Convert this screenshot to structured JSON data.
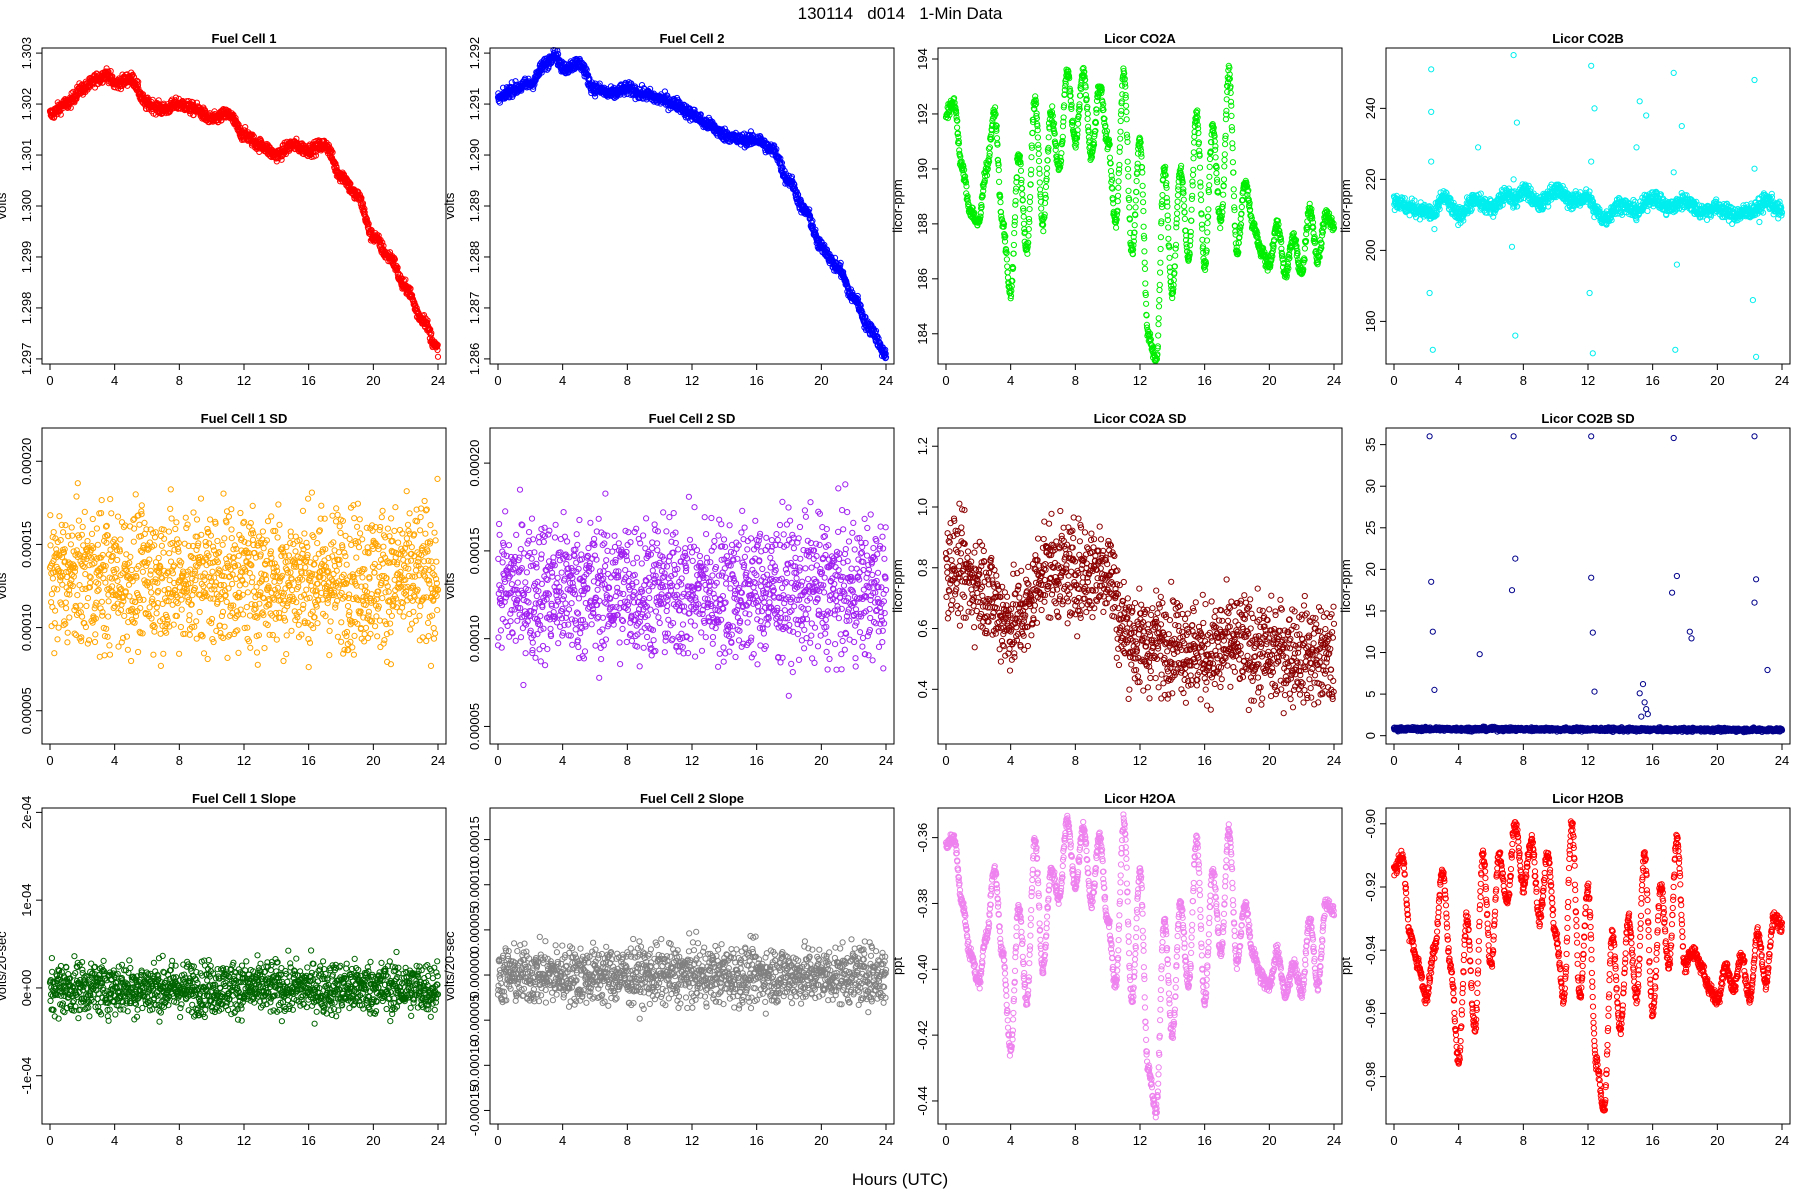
{
  "page": {
    "title": "130114   d014   1-Min Data",
    "x_caption": "Hours (UTC)"
  },
  "chart_data": [
    {
      "type": "scatter",
      "title": "Fuel Cell 1",
      "ylabel": "volts",
      "color": "#ff0000",
      "xlim": [
        0,
        24
      ],
      "ylim": [
        1.2969,
        1.3031
      ],
      "xticks": [
        0,
        4,
        8,
        12,
        16,
        20,
        24
      ],
      "xtick_labels": [
        "0",
        "4",
        "8",
        "12",
        "16",
        "20",
        "24"
      ],
      "yticks": [
        1.297,
        1.298,
        1.299,
        1.3,
        1.301,
        1.302,
        1.303
      ],
      "ytick_labels": [
        "1.297",
        "1.298",
        "1.299",
        "1.300",
        "1.301",
        "1.302",
        "1.303"
      ],
      "x": [
        0,
        1,
        2,
        3,
        3.5,
        4,
        5,
        6,
        7,
        8,
        9,
        10,
        11,
        12,
        13,
        14,
        15,
        16,
        17,
        18,
        19,
        20,
        21,
        22,
        23,
        24
      ],
      "y": [
        1.3018,
        1.302,
        1.3023,
        1.3025,
        1.3026,
        1.3024,
        1.3025,
        1.302,
        1.3019,
        1.302,
        1.3019,
        1.3017,
        1.3018,
        1.3014,
        1.3012,
        1.301,
        1.3012,
        1.3011,
        1.3012,
        1.3006,
        1.3002,
        1.2994,
        1.299,
        1.2984,
        1.2978,
        1.2972
      ],
      "jitter": 0.00012,
      "mode": "band"
    },
    {
      "type": "scatter",
      "title": "Fuel Cell 2",
      "ylabel": "volts",
      "color": "#0000ff",
      "xlim": [
        0,
        24
      ],
      "ylim": [
        1.2859,
        1.2921
      ],
      "xticks": [
        0,
        4,
        8,
        12,
        16,
        20,
        24
      ],
      "xtick_labels": [
        "0",
        "4",
        "8",
        "12",
        "16",
        "20",
        "24"
      ],
      "yticks": [
        1.286,
        1.287,
        1.288,
        1.289,
        1.29,
        1.291,
        1.292
      ],
      "ytick_labels": [
        "1.286",
        "1.287",
        "1.288",
        "1.289",
        "1.290",
        "1.291",
        "1.292"
      ],
      "x": [
        0,
        1,
        2,
        3,
        3.5,
        4,
        5,
        6,
        7,
        8,
        9,
        10,
        11,
        12,
        13,
        14,
        15,
        16,
        17,
        18,
        19,
        20,
        21,
        22,
        23,
        24
      ],
      "y": [
        1.2911,
        1.2913,
        1.2914,
        1.2918,
        1.292,
        1.2917,
        1.2918,
        1.2913,
        1.2912,
        1.2913,
        1.2912,
        1.2911,
        1.291,
        1.2908,
        1.2906,
        1.2904,
        1.2903,
        1.2903,
        1.2901,
        1.2895,
        1.2889,
        1.2882,
        1.2878,
        1.2872,
        1.2866,
        1.2861
      ],
      "jitter": 0.00012,
      "mode": "band"
    },
    {
      "type": "scatter",
      "title": "Licor CO2A",
      "ylabel": "licor-ppm",
      "color": "#00ee00",
      "xlim": [
        0,
        24
      ],
      "ylim": [
        182.9,
        194.4
      ],
      "xticks": [
        0,
        4,
        8,
        12,
        16,
        20,
        24
      ],
      "xtick_labels": [
        "0",
        "4",
        "8",
        "12",
        "16",
        "20",
        "24"
      ],
      "yticks": [
        184,
        186,
        188,
        190,
        192,
        194
      ],
      "ytick_labels": [
        "184",
        "186",
        "188",
        "190",
        "192",
        "194"
      ],
      "x": [
        0,
        0.5,
        1,
        1.5,
        2,
        2.5,
        3,
        3.5,
        4,
        4.5,
        5,
        5.5,
        6,
        6.5,
        7,
        7.5,
        8,
        8.5,
        9,
        9.5,
        10,
        10.5,
        11,
        11.5,
        12,
        12.5,
        13,
        13.5,
        14,
        14.5,
        15,
        15.5,
        16,
        16.5,
        17,
        17.5,
        18,
        18.5,
        19,
        19.5,
        20,
        20.5,
        21,
        21.5,
        22,
        22.5,
        23,
        23.5,
        24
      ],
      "y": [
        192,
        192.4,
        190,
        188.5,
        188,
        190,
        192,
        188,
        185.5,
        190.5,
        187,
        192.5,
        188,
        192,
        190,
        193.5,
        191,
        193.5,
        190.5,
        193,
        191,
        188,
        193.5,
        187,
        191,
        184,
        183,
        190,
        185.5,
        190,
        186.8,
        192,
        186.5,
        191.5,
        188,
        193.5,
        187,
        189.5,
        188,
        187,
        186.5,
        188,
        186.2,
        187.5,
        186.2,
        188.5,
        186.8,
        188.3,
        188
      ],
      "jitter": 0.25,
      "mode": "band"
    },
    {
      "type": "scatter",
      "title": "Licor CO2B",
      "ylabel": "licor-ppm",
      "color": "#00eeee",
      "xlim": [
        0,
        24
      ],
      "ylim": [
        168,
        257
      ],
      "xticks": [
        0,
        4,
        8,
        12,
        16,
        20,
        24
      ],
      "xtick_labels": [
        "0",
        "4",
        "8",
        "12",
        "16",
        "20",
        "24"
      ],
      "yticks": [
        180,
        200,
        220,
        240
      ],
      "ytick_labels": [
        "180",
        "200",
        "220",
        "240"
      ],
      "x": [
        0,
        1,
        2,
        2.5,
        3,
        4,
        5,
        6,
        7,
        7.5,
        8,
        9,
        10,
        11,
        12,
        12.5,
        13,
        14,
        15,
        16,
        17,
        18,
        19,
        20,
        21,
        22,
        22.5,
        23,
        24
      ],
      "y": [
        214,
        212,
        211,
        210,
        215,
        210,
        214,
        212,
        216,
        214,
        217,
        213,
        217,
        214,
        215,
        211,
        209,
        213,
        211,
        215,
        212,
        214,
        211,
        212,
        210,
        211,
        212,
        214,
        211
      ],
      "jitter": 2.2,
      "mode": "band",
      "outliers_x": [
        2.3,
        2.4,
        7.4,
        7.5,
        12.2,
        12.3,
        17.3,
        17.4,
        22.3,
        22.4,
        2.3,
        7.4,
        12.2,
        17.3,
        22.3,
        2.2,
        12.1,
        22.2,
        15.2,
        15.6,
        17.8,
        2.3,
        7.6,
        12.4,
        17.5,
        22.6,
        2.5,
        7.3,
        5.2,
        15.0
      ],
      "outliers_y": [
        251,
        172,
        255,
        176,
        252,
        171,
        250,
        172,
        248,
        170,
        225,
        220,
        225,
        222,
        223,
        188,
        188,
        186,
        242,
        238,
        235,
        239,
        236,
        240,
        196,
        208,
        206,
        201,
        229,
        229
      ]
    },
    {
      "type": "scatter",
      "title": "Fuel Cell 1 SD",
      "ylabel": "volts",
      "color": "#ffa500",
      "xlim": [
        0,
        24
      ],
      "ylim": [
        3e-05,
        0.00022
      ],
      "xticks": [
        0,
        4,
        8,
        12,
        16,
        20,
        24
      ],
      "xtick_labels": [
        "0",
        "4",
        "8",
        "12",
        "16",
        "20",
        "24"
      ],
      "yticks": [
        5e-05,
        0.0001,
        0.00015,
        0.0002
      ],
      "ytick_labels": [
        "0.00005",
        "0.00010",
        "0.00015",
        "0.00020"
      ],
      "x": [
        0,
        24
      ],
      "y": [
        0.00013,
        0.00013
      ],
      "jitter": 4.2e-05,
      "mode": "cloud"
    },
    {
      "type": "scatter",
      "title": "Fuel Cell 2 SD",
      "ylabel": "volts",
      "color": "#a020f0",
      "xlim": [
        0,
        24
      ],
      "ylim": [
        4e-05,
        0.00022
      ],
      "xticks": [
        0,
        4,
        8,
        12,
        16,
        20,
        24
      ],
      "xtick_labels": [
        "0",
        "4",
        "8",
        "12",
        "16",
        "20",
        "24"
      ],
      "yticks": [
        5e-05,
        0.0001,
        0.00015,
        0.0002
      ],
      "ytick_labels": [
        "0.00005",
        "0.00010",
        "0.00015",
        "0.00020"
      ],
      "x": [
        0,
        24
      ],
      "y": [
        0.000128,
        0.000128
      ],
      "jitter": 4e-05,
      "mode": "cloud"
    },
    {
      "type": "scatter",
      "title": "Licor CO2A SD",
      "ylabel": "licor-ppm",
      "color": "#8b0000",
      "xlim": [
        0,
        24
      ],
      "ylim": [
        0.22,
        1.26
      ],
      "xticks": [
        0,
        4,
        8,
        12,
        16,
        20,
        24
      ],
      "xtick_labels": [
        "0",
        "4",
        "8",
        "12",
        "16",
        "20",
        "24"
      ],
      "yticks": [
        0.4,
        0.6,
        0.8,
        1.0,
        1.2
      ],
      "ytick_labels": [
        "0.4",
        "0.6",
        "0.8",
        "1.0",
        "1.2"
      ],
      "x": [
        0,
        2,
        4,
        5,
        6,
        8,
        10,
        11,
        12,
        14,
        16,
        18,
        20,
        22,
        24
      ],
      "y": [
        0.82,
        0.75,
        0.62,
        0.66,
        0.8,
        0.78,
        0.8,
        0.6,
        0.55,
        0.56,
        0.52,
        0.55,
        0.52,
        0.52,
        0.5
      ],
      "jitter": 0.16,
      "mode": "cloud"
    },
    {
      "type": "scatter",
      "title": "Licor CO2B SD",
      "ylabel": "licor-ppm",
      "color": "#00008b",
      "xlim": [
        0,
        24
      ],
      "ylim": [
        -1,
        37
      ],
      "xticks": [
        0,
        4,
        8,
        12,
        16,
        20,
        24
      ],
      "xtick_labels": [
        "0",
        "4",
        "8",
        "12",
        "16",
        "20",
        "24"
      ],
      "yticks": [
        0,
        5,
        10,
        15,
        20,
        25,
        30,
        35
      ],
      "ytick_labels": [
        "0",
        "5",
        "10",
        "15",
        "20",
        "25",
        "30",
        "35"
      ],
      "x": [
        0,
        24
      ],
      "y": [
        0.8,
        0.7
      ],
      "jitter": 0.22,
      "mode": "band",
      "outliers_x": [
        2.2,
        7.4,
        12.2,
        17.3,
        22.3,
        2.3,
        7.5,
        12.2,
        17.5,
        22.4,
        2.4,
        7.3,
        12.3,
        17.2,
        22.3,
        2.5,
        12.4,
        18.3,
        18.4,
        23.1,
        5.3,
        15.4,
        15.5,
        15.6,
        15.7,
        15.2,
        15.3
      ],
      "outliers_y": [
        36,
        36,
        36,
        35.8,
        36,
        18.5,
        21.3,
        19,
        19.2,
        18.8,
        12.5,
        17.5,
        12.4,
        17.2,
        16,
        5.5,
        5.3,
        12.5,
        11.7,
        7.9,
        9.8,
        6.2,
        4.0,
        3.2,
        2.6,
        5.1,
        2.3
      ]
    },
    {
      "type": "scatter",
      "title": "Fuel Cell 1 Slope",
      "ylabel": "volts/20-sec",
      "color": "#006400",
      "xlim": [
        0,
        24
      ],
      "ylim": [
        -0.000155,
        0.000205
      ],
      "xticks": [
        0,
        4,
        8,
        12,
        16,
        20,
        24
      ],
      "xtick_labels": [
        "0",
        "4",
        "8",
        "12",
        "16",
        "20",
        "24"
      ],
      "yticks": [
        -0.0001,
        0,
        0.0001,
        0.0002
      ],
      "ytick_labels": [
        "-1e-04",
        "0e+00",
        "1e-04",
        "2e-04"
      ],
      "x": [
        0,
        24
      ],
      "y": [
        0,
        0
      ],
      "jitter": 3e-05,
      "mode": "cloud"
    },
    {
      "type": "scatter",
      "title": "Fuel Cell 2 Slope",
      "ylabel": "volts/20-sec",
      "color": "#808080",
      "xlim": [
        0,
        24
      ],
      "ylim": [
        -0.000165,
        0.000185
      ],
      "xticks": [
        0,
        4,
        8,
        12,
        16,
        20,
        24
      ],
      "xtick_labels": [
        "0",
        "4",
        "8",
        "12",
        "16",
        "20",
        "24"
      ],
      "yticks": [
        -0.00015,
        -0.0001,
        -5e-05,
        0,
        5e-05,
        0.0001,
        0.00015
      ],
      "ytick_labels": [
        "-0.00015",
        "-0.00010",
        "-0.00005",
        "0.00000",
        "0.00005",
        "0.00010",
        "0.00015"
      ],
      "x": [
        0,
        24
      ],
      "y": [
        0,
        0
      ],
      "jitter": 3.2e-05,
      "mode": "cloud"
    },
    {
      "type": "scatter",
      "title": "Licor H2OA",
      "ylabel": "ppt",
      "color": "#ee82ee",
      "xlim": [
        0,
        24
      ],
      "ylim": [
        -0.447,
        -0.351
      ],
      "xticks": [
        0,
        4,
        8,
        12,
        16,
        20,
        24
      ],
      "xtick_labels": [
        "0",
        "4",
        "8",
        "12",
        "16",
        "20",
        "24"
      ],
      "yticks": [
        -0.44,
        -0.42,
        -0.4,
        -0.38,
        -0.36
      ],
      "ytick_labels": [
        "-0.44",
        "-0.42",
        "-0.40",
        "-0.38",
        "-0.36"
      ],
      "x": [
        0,
        0.5,
        1,
        1.5,
        2,
        2.5,
        3,
        3.5,
        4,
        4.5,
        5,
        5.5,
        6,
        6.5,
        7,
        7.5,
        8,
        8.5,
        9,
        9.5,
        10,
        10.5,
        11,
        11.5,
        12,
        12.5,
        13,
        13.5,
        14,
        14.5,
        15,
        15.5,
        16,
        16.5,
        17,
        17.5,
        18,
        18.5,
        19,
        19.5,
        20,
        20.5,
        21,
        21.5,
        22,
        22.5,
        23,
        23.5,
        24
      ],
      "y": [
        -0.362,
        -0.36,
        -0.38,
        -0.395,
        -0.404,
        -0.39,
        -0.37,
        -0.395,
        -0.425,
        -0.38,
        -0.41,
        -0.36,
        -0.4,
        -0.37,
        -0.378,
        -0.355,
        -0.375,
        -0.357,
        -0.38,
        -0.36,
        -0.385,
        -0.405,
        -0.355,
        -0.41,
        -0.37,
        -0.43,
        -0.443,
        -0.385,
        -0.42,
        -0.38,
        -0.405,
        -0.36,
        -0.41,
        -0.37,
        -0.395,
        -0.358,
        -0.398,
        -0.38,
        -0.395,
        -0.402,
        -0.405,
        -0.395,
        -0.408,
        -0.398,
        -0.407,
        -0.385,
        -0.405,
        -0.38,
        -0.382
      ],
      "jitter": 0.002,
      "mode": "band"
    },
    {
      "type": "scatter",
      "title": "Licor H2OB",
      "ylabel": "ppt",
      "color": "#ff0000",
      "xlim": [
        0,
        24
      ],
      "ylim": [
        -0.995,
        -0.895
      ],
      "xticks": [
        0,
        4,
        8,
        12,
        16,
        20,
        24
      ],
      "xtick_labels": [
        "0",
        "4",
        "8",
        "12",
        "16",
        "20",
        "24"
      ],
      "yticks": [
        -0.98,
        -0.96,
        -0.94,
        -0.92,
        -0.9
      ],
      "ytick_labels": [
        "-0.98",
        "-0.96",
        "-0.94",
        "-0.92",
        "-0.90"
      ],
      "x": [
        0,
        0.5,
        1,
        1.5,
        2,
        2.5,
        3,
        3.5,
        4,
        4.5,
        5,
        5.5,
        6,
        6.5,
        7,
        7.5,
        8,
        8.5,
        9,
        9.5,
        10,
        10.5,
        11,
        11.5,
        12,
        12.5,
        13,
        13.5,
        14,
        14.5,
        15,
        15.5,
        16,
        16.5,
        17,
        17.5,
        18,
        18.5,
        19,
        19.5,
        20,
        20.5,
        21,
        21.5,
        22,
        22.5,
        23,
        23.5,
        24
      ],
      "y": [
        -0.915,
        -0.91,
        -0.935,
        -0.945,
        -0.955,
        -0.94,
        -0.915,
        -0.945,
        -0.975,
        -0.93,
        -0.965,
        -0.91,
        -0.945,
        -0.91,
        -0.925,
        -0.9,
        -0.92,
        -0.905,
        -0.93,
        -0.91,
        -0.935,
        -0.955,
        -0.9,
        -0.955,
        -0.92,
        -0.975,
        -0.99,
        -0.935,
        -0.965,
        -0.93,
        -0.955,
        -0.91,
        -0.96,
        -0.92,
        -0.945,
        -0.905,
        -0.945,
        -0.94,
        -0.945,
        -0.952,
        -0.956,
        -0.945,
        -0.952,
        -0.942,
        -0.955,
        -0.935,
        -0.95,
        -0.93,
        -0.932
      ],
      "jitter": 0.0022,
      "mode": "band"
    }
  ]
}
